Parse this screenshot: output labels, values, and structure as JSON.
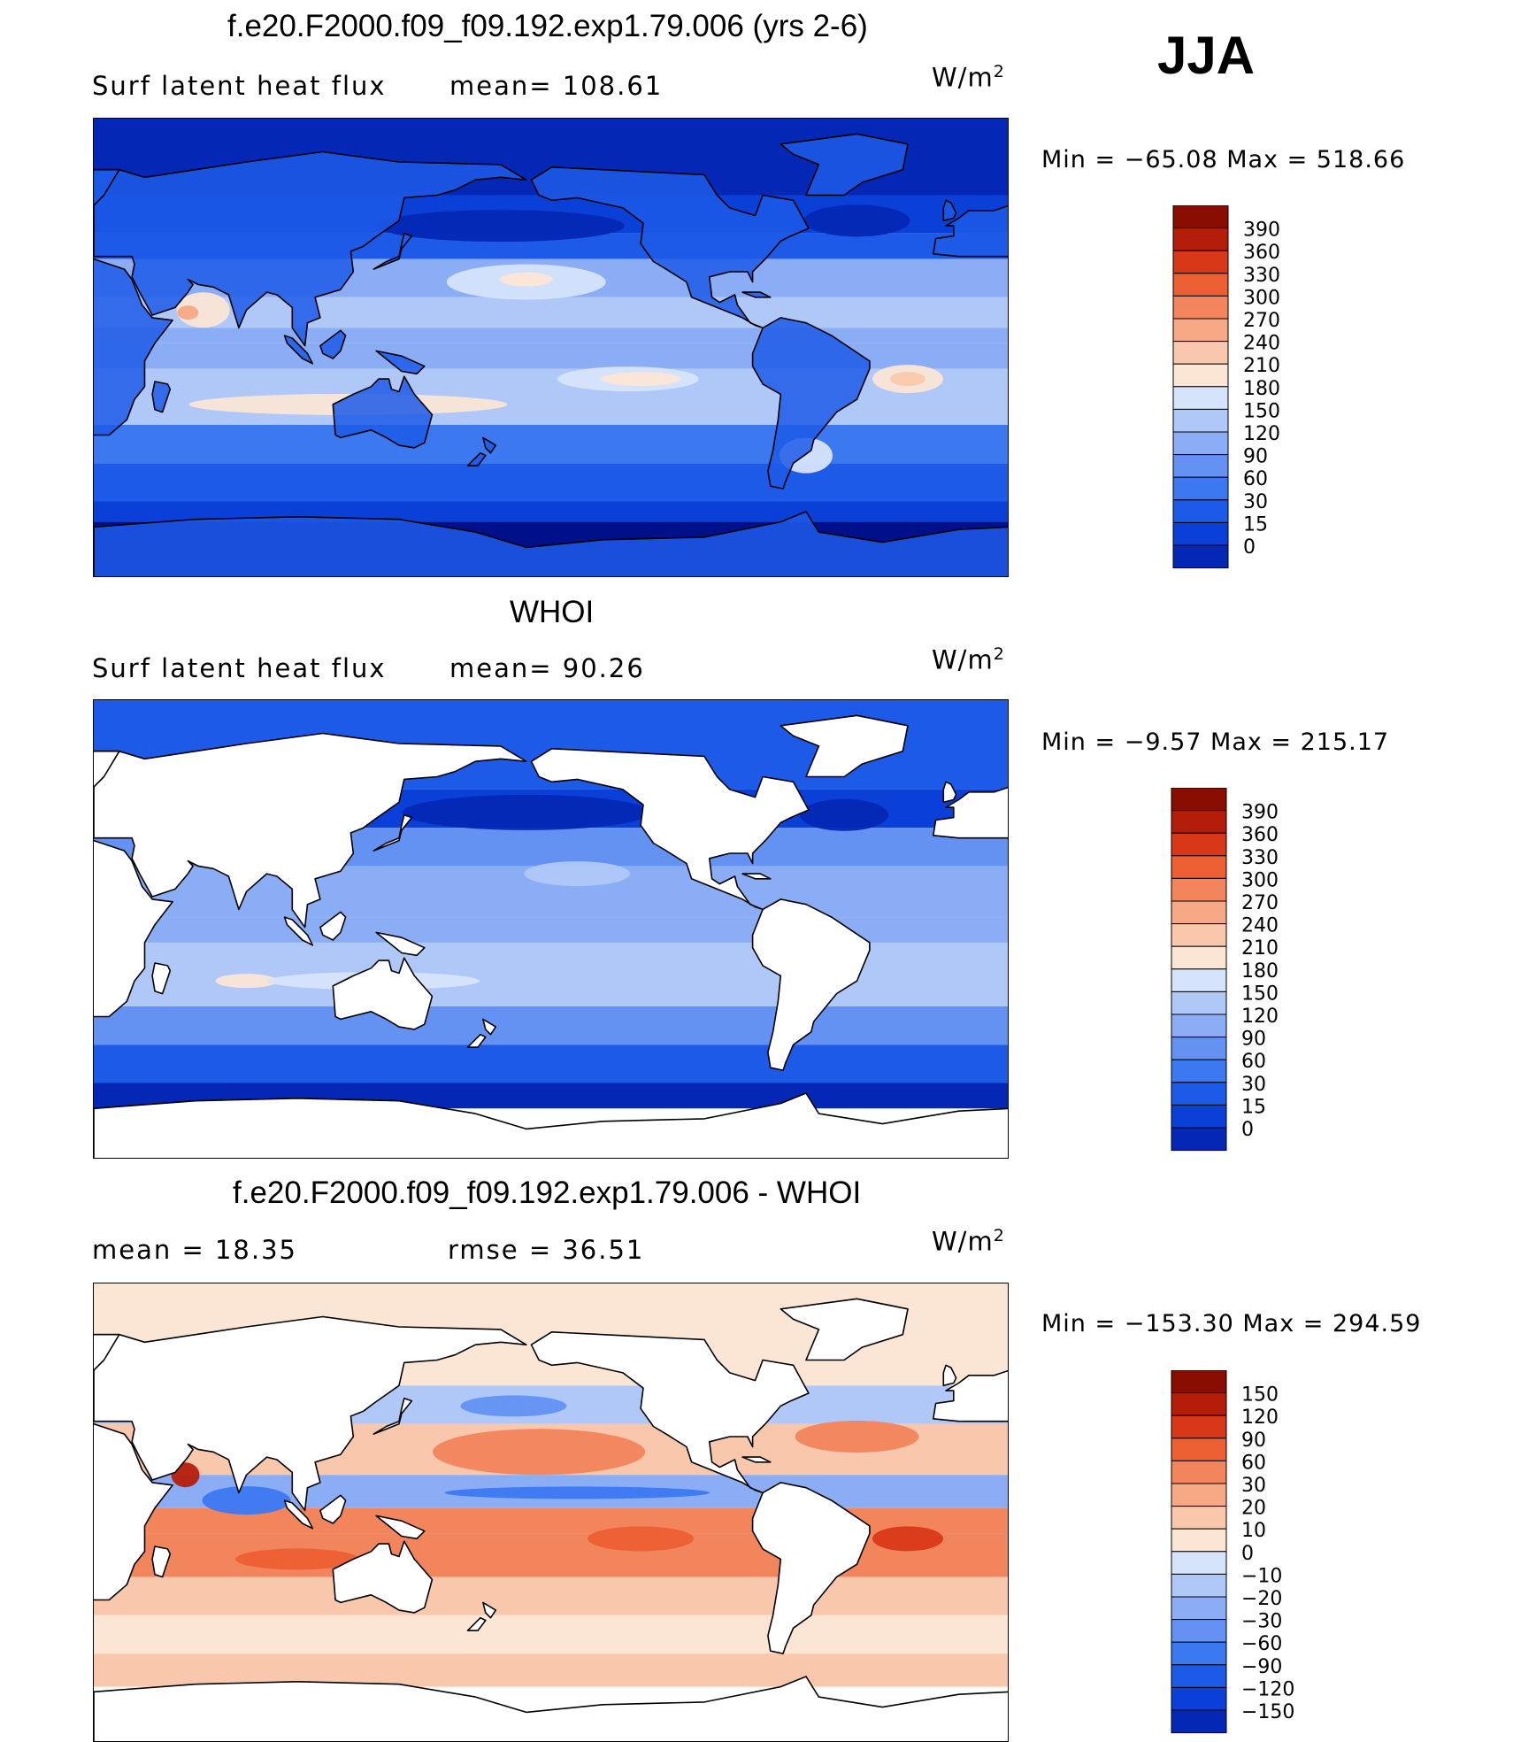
{
  "season_label": "JJA",
  "colors": {
    "blue_scale": [
      "#00108a",
      "#0428b5",
      "#0a3fd8",
      "#1d5ae8",
      "#3c78f0",
      "#6392f2",
      "#8aadf5",
      "#b0c8f8",
      "#d6e4fb",
      "#fbe6d6",
      "#f9c8ac",
      "#f6a984",
      "#f2855c",
      "#ec5f33",
      "#d93818",
      "#b51d0b",
      "#8a0d02"
    ],
    "land": "#ffffff",
    "coast": "#000000"
  },
  "panels": [
    {
      "title": "f.e20.F2000.f09_f09.192.exp1.79.006 (yrs 2-6)",
      "left_label": "Surf latent heat flux",
      "center_label": "mean=  108.61",
      "units_base": "W/m",
      "units_exp": "2",
      "stats": "Min  =  −65.08  Max  =  518.66",
      "colorbar_labels": [
        "390",
        "360",
        "330",
        "300",
        "270",
        "240",
        "210",
        "180",
        "150",
        "120",
        "90",
        "60",
        "30",
        "15",
        "0"
      ],
      "map_kind": "model"
    },
    {
      "title": "WHOI",
      "left_label": "Surf latent heat flux",
      "center_label": "mean=   90.26",
      "units_base": "W/m",
      "units_exp": "2",
      "stats": "Min  =    −9.57  Max  =  215.17",
      "colorbar_labels": [
        "390",
        "360",
        "330",
        "300",
        "270",
        "240",
        "210",
        "180",
        "150",
        "120",
        "90",
        "60",
        "30",
        "15",
        "0"
      ],
      "map_kind": "obs"
    },
    {
      "title": "f.e20.F2000.f09_f09.192.exp1.79.006 - WHOI",
      "left_label": "mean  =    18.35",
      "center_label": "rmse  =    36.51",
      "units_base": "W/m",
      "units_exp": "2",
      "stats": "Min  =  −153.30  Max  =  294.59",
      "colorbar_labels": [
        "150",
        "120",
        "90",
        "60",
        "30",
        "20",
        "10",
        "0",
        "−10",
        "−20",
        "−30",
        "−60",
        "−90",
        "−120",
        "−150"
      ],
      "map_kind": "diff"
    }
  ]
}
